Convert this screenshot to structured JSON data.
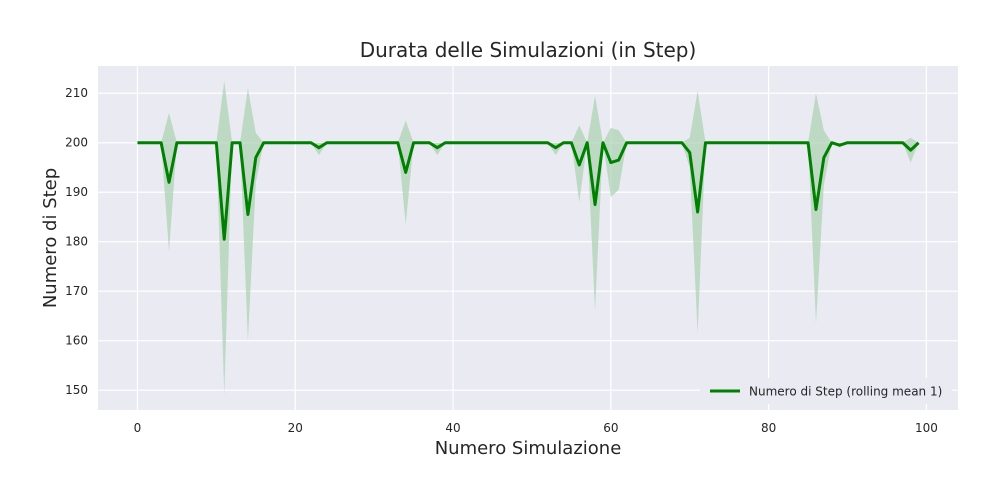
{
  "chart_data": {
    "type": "line",
    "title": "Durata delle Simulazioni (in Step)",
    "xlabel": "Numero Simulazione",
    "ylabel": "Numero di Step",
    "xlim": [
      -5,
      104
    ],
    "ylim": [
      146,
      215.5
    ],
    "x_ticks": [
      0,
      20,
      40,
      60,
      80,
      100
    ],
    "y_ticks": [
      150,
      160,
      170,
      180,
      190,
      200,
      210
    ],
    "grid": true,
    "legend_position": "bottom-right",
    "colors": {
      "line": "#008000",
      "band": "#a9d2b0",
      "background": "#eaeaf2",
      "grid": "#ffffff"
    },
    "series": [
      {
        "name": "Numero di Step (rolling mean 1)",
        "x": [
          0,
          1,
          2,
          3,
          4,
          5,
          6,
          7,
          8,
          9,
          10,
          11,
          12,
          13,
          14,
          15,
          16,
          17,
          18,
          19,
          20,
          21,
          22,
          23,
          24,
          25,
          26,
          27,
          28,
          29,
          30,
          31,
          32,
          33,
          34,
          35,
          36,
          37,
          38,
          39,
          40,
          41,
          42,
          43,
          44,
          45,
          46,
          47,
          48,
          49,
          50,
          51,
          52,
          53,
          54,
          55,
          56,
          57,
          58,
          59,
          60,
          61,
          62,
          63,
          64,
          65,
          66,
          67,
          68,
          69,
          70,
          71,
          72,
          73,
          74,
          75,
          76,
          77,
          78,
          79,
          80,
          81,
          82,
          83,
          84,
          85,
          86,
          87,
          88,
          89,
          90,
          91,
          92,
          93,
          94,
          95,
          96,
          97,
          98,
          99
        ],
        "values": [
          200,
          200,
          200,
          200,
          192,
          200,
          200,
          200,
          200,
          200,
          200,
          180.5,
          200,
          200,
          185.5,
          197,
          200,
          200,
          200,
          200,
          200,
          200,
          200,
          199,
          200,
          200,
          200,
          200,
          200,
          200,
          200,
          200,
          200,
          200,
          194,
          200,
          200,
          200,
          199,
          200,
          200,
          200,
          200,
          200,
          200,
          200,
          200,
          200,
          200,
          200,
          200,
          200,
          200,
          199,
          200,
          200,
          195.5,
          200,
          187.5,
          200,
          196,
          196.5,
          200,
          200,
          200,
          200,
          200,
          200,
          200,
          200,
          198,
          186,
          200,
          200,
          200,
          200,
          200,
          200,
          200,
          200,
          200,
          200,
          200,
          200,
          200,
          200,
          186.5,
          197,
          200,
          199.5,
          200,
          200,
          200,
          200,
          200,
          200,
          200,
          200,
          198.5,
          200
        ],
        "band_upper": [
          200,
          200,
          200,
          200,
          206,
          200,
          200,
          200,
          200,
          200,
          200,
          212.5,
          200,
          200,
          211,
          202,
          200,
          200,
          200,
          200,
          200,
          200,
          200,
          200,
          200,
          200,
          200,
          200,
          200,
          200,
          200,
          200,
          200,
          200,
          204.5,
          200,
          200,
          200,
          200,
          200,
          200,
          200,
          200,
          200,
          200,
          200,
          200,
          200,
          200,
          200,
          200,
          200,
          200,
          200,
          200,
          200,
          203.5,
          200,
          209.5,
          200,
          203,
          202.5,
          200,
          200,
          200,
          200,
          200,
          200,
          200,
          200,
          201,
          210.5,
          200,
          200,
          200,
          200,
          200,
          200,
          200,
          200,
          200,
          200,
          200,
          200,
          200,
          200,
          210,
          202.5,
          200,
          200,
          200,
          200,
          200,
          200,
          200,
          200,
          200,
          200,
          201,
          200
        ],
        "band_lower": [
          200,
          200,
          200,
          200,
          178,
          200,
          200,
          200,
          200,
          200,
          200,
          149,
          200,
          200,
          160,
          192,
          200,
          200,
          200,
          200,
          200,
          200,
          200,
          197.5,
          200,
          200,
          200,
          200,
          200,
          200,
          200,
          200,
          200,
          200,
          183.5,
          200,
          200,
          200,
          197.5,
          200,
          200,
          200,
          200,
          200,
          200,
          200,
          200,
          200,
          200,
          200,
          200,
          200,
          200,
          197.5,
          200,
          200,
          188,
          200,
          166,
          200,
          189,
          190.5,
          200,
          200,
          200,
          200,
          200,
          200,
          200,
          200,
          195,
          161.5,
          200,
          200,
          200,
          200,
          200,
          200,
          200,
          200,
          200,
          200,
          200,
          200,
          200,
          200,
          163.5,
          191.5,
          200,
          199,
          200,
          200,
          200,
          200,
          200,
          200,
          200,
          200,
          196,
          200
        ]
      }
    ]
  }
}
